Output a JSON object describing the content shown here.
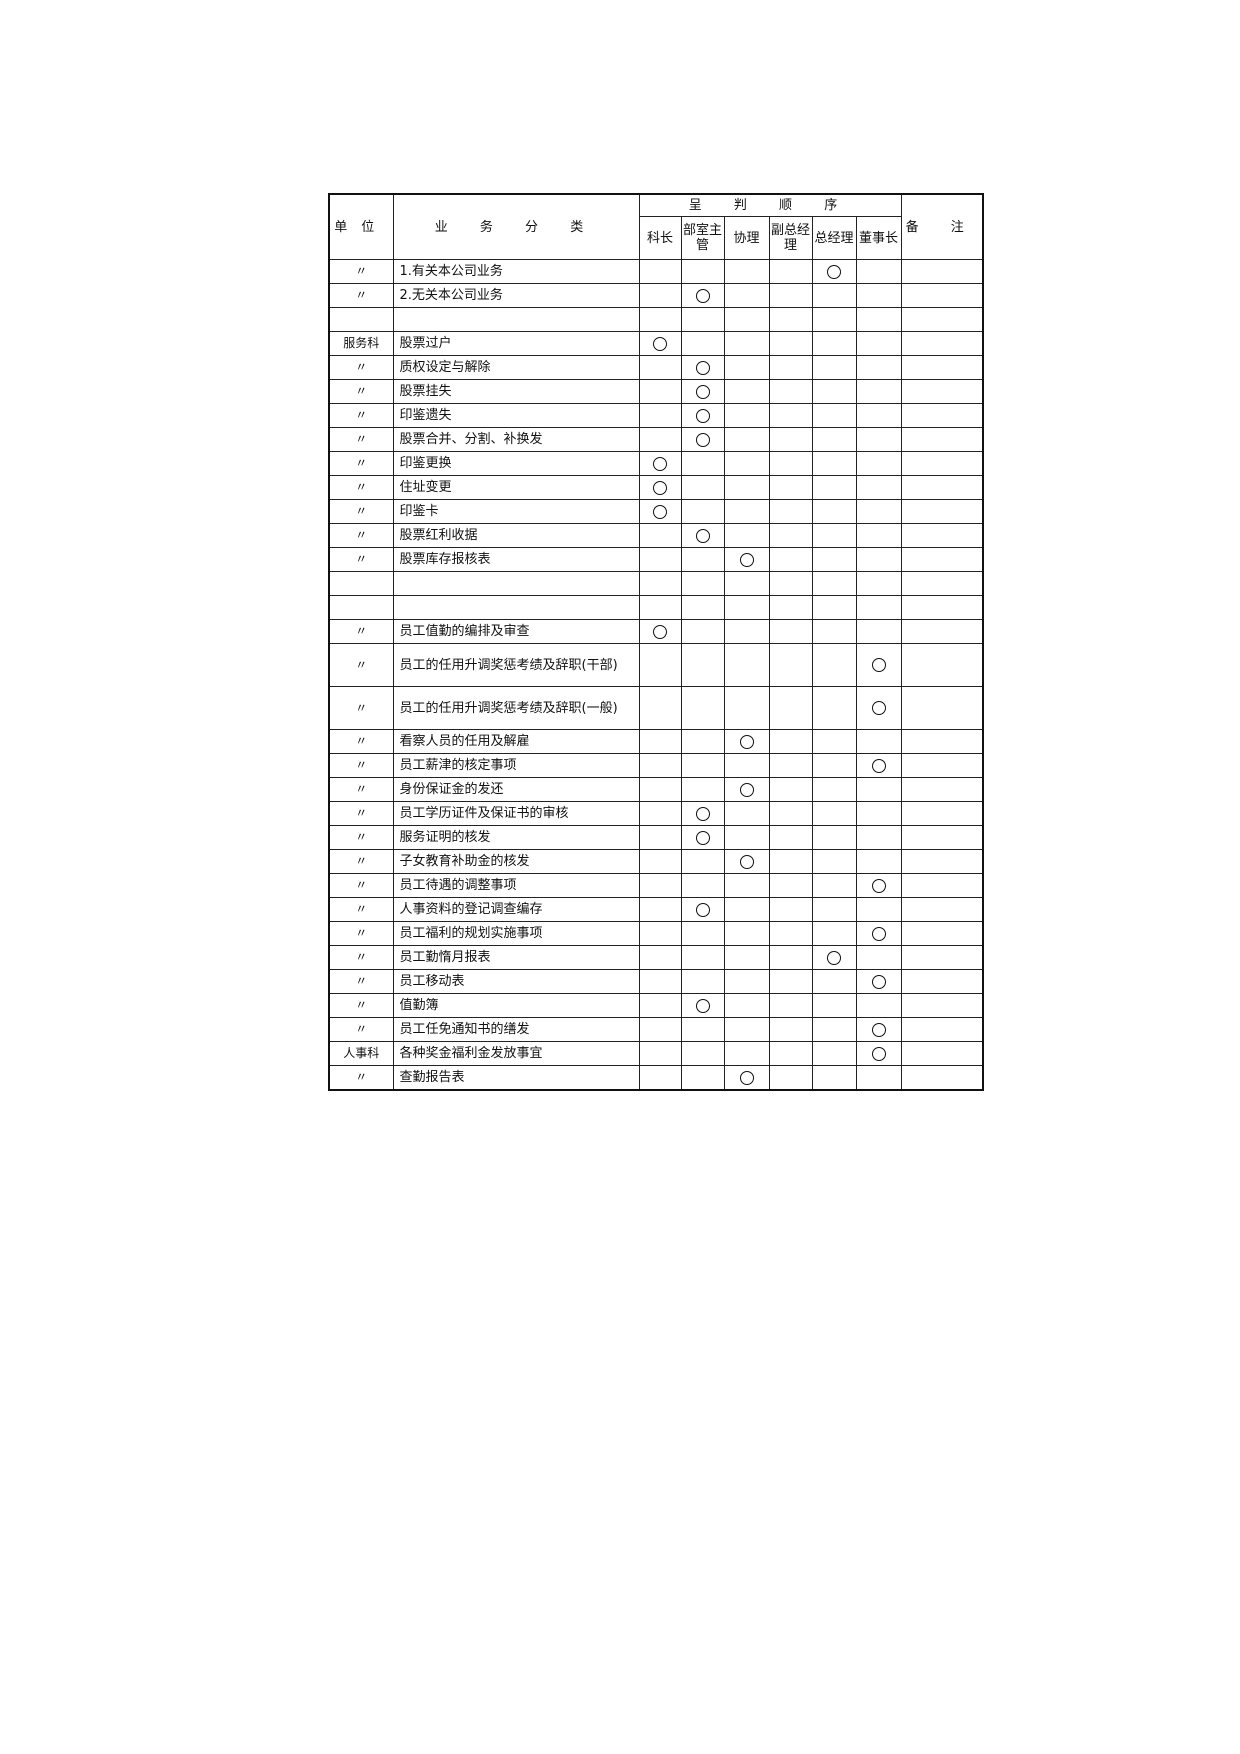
{
  "header": {
    "unit": "单位",
    "category": "业 务 分 类",
    "order_group": "呈 判 顺 序",
    "remarks": "备 注",
    "roles": [
      "科长",
      "部室主管",
      "协理",
      "副总经理",
      "总经理",
      "董事长"
    ]
  },
  "mark_symbol": "circle",
  "rows": [
    {
      "unit": "〃",
      "item": "1.有关本公司业务",
      "mark": 4
    },
    {
      "unit": "〃",
      "item": "2.无关本公司业务",
      "mark": 1
    },
    {
      "unit": "",
      "item": "",
      "mark": null
    },
    {
      "unit": "服务科",
      "item": "股票过户",
      "mark": 0
    },
    {
      "unit": "〃",
      "item": "质权设定与解除",
      "mark": 1
    },
    {
      "unit": "〃",
      "item": "股票挂失",
      "mark": 1
    },
    {
      "unit": "〃",
      "item": "印鉴遗失",
      "mark": 1
    },
    {
      "unit": "〃",
      "item": "股票合并、分割、补换发",
      "mark": 1
    },
    {
      "unit": "〃",
      "item": "印鉴更换",
      "mark": 0
    },
    {
      "unit": "〃",
      "item": "住址变更",
      "mark": 0
    },
    {
      "unit": "〃",
      "item": "印鉴卡",
      "mark": 0
    },
    {
      "unit": "〃",
      "item": "股票红利收据",
      "mark": 1
    },
    {
      "unit": "〃",
      "item": "股票库存报核表",
      "mark": 2
    },
    {
      "unit": "",
      "item": "",
      "mark": null
    },
    {
      "unit": "",
      "item": "",
      "mark": null
    },
    {
      "unit": "〃",
      "item": "员工值勤的编排及审查",
      "mark": 0
    },
    {
      "unit": "〃",
      "item": "员工的任用升调奖惩考绩及辞职(干部)",
      "mark": 5,
      "tall": true
    },
    {
      "unit": "〃",
      "item": "员工的任用升调奖惩考绩及辞职(一般)",
      "mark": 5,
      "tall": true
    },
    {
      "unit": "〃",
      "item": "看察人员的任用及解雇",
      "mark": 2
    },
    {
      "unit": "〃",
      "item": "员工薪津的核定事项",
      "mark": 5
    },
    {
      "unit": "〃",
      "item": "身份保证金的发还",
      "mark": 2
    },
    {
      "unit": "〃",
      "item": "员工学历证件及保证书的审核",
      "mark": 1
    },
    {
      "unit": "〃",
      "item": "服务证明的核发",
      "mark": 1
    },
    {
      "unit": "〃",
      "item": "子女教育补助金的核发",
      "mark": 2
    },
    {
      "unit": "〃",
      "item": "员工待遇的调整事项",
      "mark": 5
    },
    {
      "unit": "〃",
      "item": "人事资料的登记调查编存",
      "mark": 1
    },
    {
      "unit": "〃",
      "item": "员工福利的规划实施事项",
      "mark": 5
    },
    {
      "unit": "〃",
      "item": "员工勤惰月报表",
      "mark": 4
    },
    {
      "unit": "〃",
      "item": "员工移动表",
      "mark": 5
    },
    {
      "unit": "〃",
      "item": "值勤簿",
      "mark": 1
    },
    {
      "unit": "〃",
      "item": "员工任免通知书的缮发",
      "mark": 5
    },
    {
      "unit": "人事科",
      "item": "各种奖金福利金发放事宜",
      "mark": 5
    },
    {
      "unit": "〃",
      "item": "查勤报告表",
      "mark": 2
    }
  ]
}
